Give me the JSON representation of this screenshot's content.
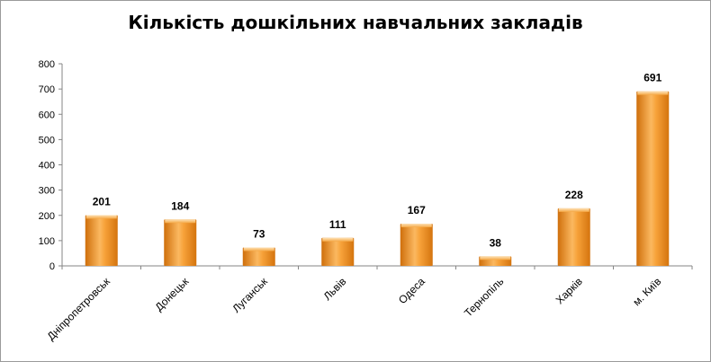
{
  "chart_data": {
    "type": "bar",
    "title": "Кількість дошкільних навчальних закладів",
    "xlabel": "",
    "ylabel": "",
    "categories": [
      "Дніпропетровськ",
      "Донецьк",
      "Луганськ",
      "Львів",
      "Одеса",
      "Тернопіль",
      "Харків",
      "м. Київ"
    ],
    "values": [
      201,
      184,
      73,
      111,
      167,
      38,
      228,
      691
    ],
    "data_labels": [
      "201",
      "184",
      "73",
      "111",
      "167",
      "38",
      "228",
      "691"
    ],
    "y_ticks": [
      "0",
      "100",
      "200",
      "300",
      "400",
      "500",
      "600",
      "700",
      "800"
    ],
    "ylim": [
      0,
      800
    ],
    "grid": false,
    "legend": "none",
    "colors": {
      "bar_light": "#fdd397",
      "bar_mid": "#f7a23a",
      "bar_dark": "#cf6f0b",
      "axis": "#868686"
    }
  }
}
